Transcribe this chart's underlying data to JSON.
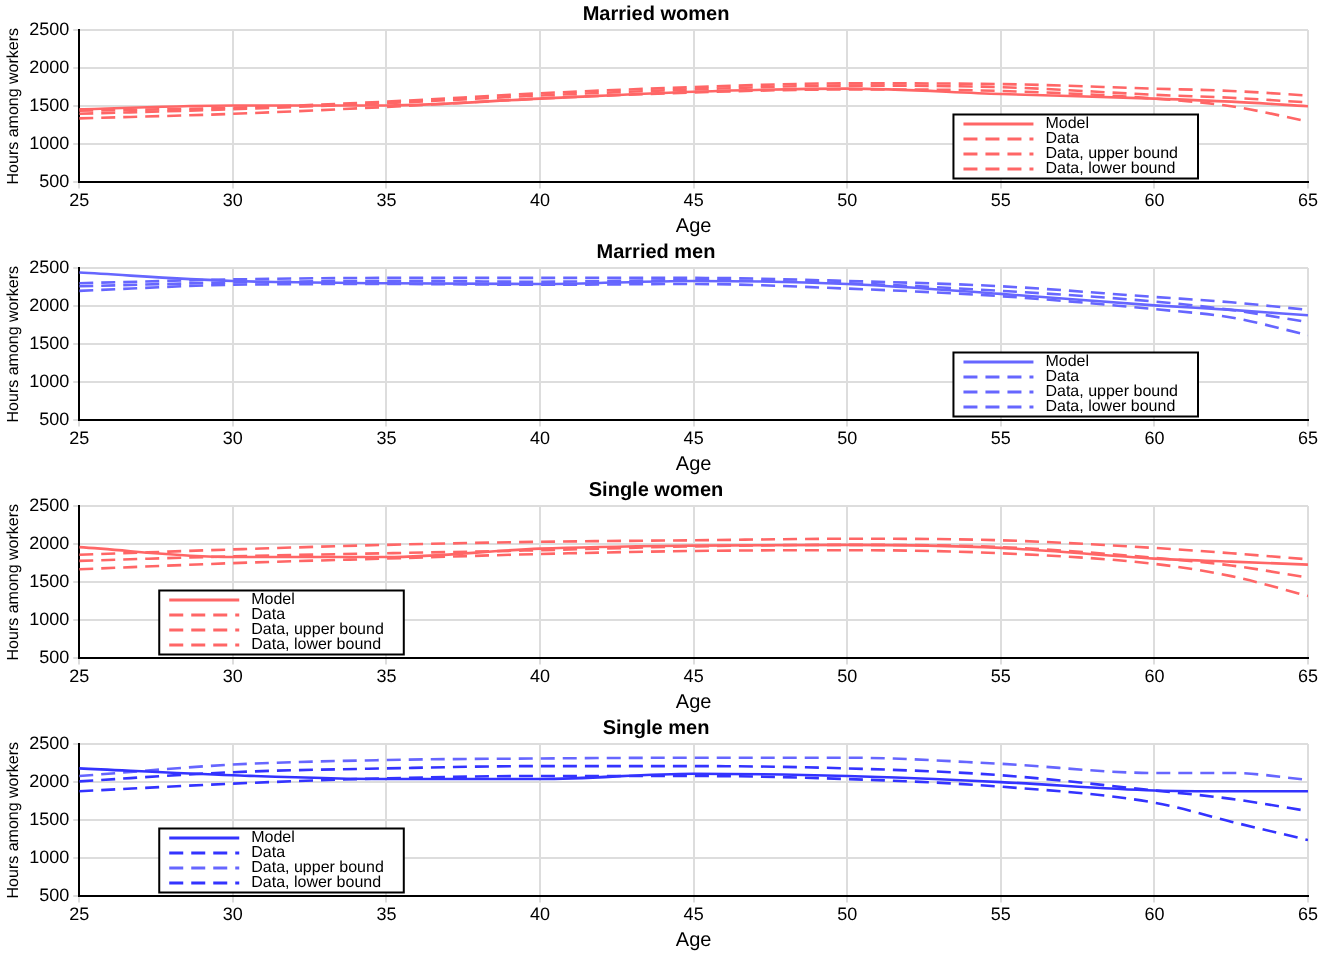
{
  "chart_data": [
    {
      "type": "line",
      "title": "Married women",
      "xlabel": "Age",
      "ylabel": "Hours among workers",
      "x": [
        25,
        30,
        35,
        40,
        45,
        50,
        55,
        60,
        62.5,
        65
      ],
      "xlim": [
        25,
        65
      ],
      "xticks": [
        25,
        30,
        35,
        40,
        45,
        50,
        55,
        60,
        65
      ],
      "ylim": [
        500,
        2500
      ],
      "yticks": [
        500,
        1000,
        1500,
        2000,
        2500
      ],
      "grid": true,
      "legend": "bottom right",
      "series": [
        {
          "name": "Model",
          "color": "#ff6666",
          "line_style": "solid",
          "values": [
            1460,
            1510,
            1510,
            1600,
            1690,
            1730,
            1660,
            1600,
            1560,
            1500
          ]
        },
        {
          "name": "Data",
          "color": "#ff6666",
          "line_style": "dashed",
          "values": [
            1400,
            1460,
            1540,
            1640,
            1720,
            1770,
            1750,
            1650,
            1610,
            1550
          ]
        },
        {
          "name": "Data, upper bound",
          "color": "#ff6666",
          "line_style": "dashed",
          "values": [
            1440,
            1480,
            1560,
            1670,
            1750,
            1800,
            1790,
            1730,
            1700,
            1640
          ]
        },
        {
          "name": "Data, lower bound",
          "color": "#ff6666",
          "line_style": "dashed",
          "values": [
            1340,
            1400,
            1490,
            1600,
            1680,
            1720,
            1700,
            1600,
            1500,
            1300
          ]
        }
      ]
    },
    {
      "type": "line",
      "title": "Married men",
      "xlabel": "Age",
      "ylabel": "Hours among workers",
      "x": [
        25,
        30,
        35,
        40,
        45,
        50,
        55,
        60,
        62.5,
        65
      ],
      "xlim": [
        25,
        65
      ],
      "xticks": [
        25,
        30,
        35,
        40,
        45,
        50,
        55,
        60,
        65
      ],
      "ylim": [
        500,
        2500
      ],
      "yticks": [
        500,
        1000,
        1500,
        2000,
        2500
      ],
      "grid": true,
      "legend": "bottom right",
      "series": [
        {
          "name": "Model",
          "color": "#6666ff",
          "line_style": "solid",
          "values": [
            2440,
            2330,
            2300,
            2290,
            2330,
            2290,
            2160,
            2010,
            1950,
            1880
          ]
        },
        {
          "name": "Data",
          "color": "#6666ff",
          "line_style": "dashed",
          "values": [
            2260,
            2310,
            2330,
            2320,
            2340,
            2300,
            2200,
            2060,
            1950,
            1790
          ]
        },
        {
          "name": "Data, upper bound",
          "color": "#6666ff",
          "line_style": "dashed",
          "values": [
            2300,
            2350,
            2370,
            2370,
            2370,
            2330,
            2260,
            2120,
            2050,
            1950
          ]
        },
        {
          "name": "Data, lower bound",
          "color": "#6666ff",
          "line_style": "dashed",
          "values": [
            2200,
            2280,
            2290,
            2280,
            2290,
            2230,
            2130,
            1960,
            1850,
            1620
          ]
        }
      ]
    },
    {
      "type": "line",
      "title": "Single women",
      "xlabel": "Age",
      "ylabel": "Hours among workers",
      "x": [
        25,
        30,
        35,
        40,
        45,
        50,
        55,
        60,
        62.5,
        65
      ],
      "xlim": [
        25,
        65
      ],
      "xticks": [
        25,
        30,
        35,
        40,
        45,
        50,
        55,
        60,
        65
      ],
      "ylim": [
        500,
        2500
      ],
      "yticks": [
        500,
        1000,
        1500,
        2000,
        2500
      ],
      "grid": true,
      "legend": "bottom left",
      "series": [
        {
          "name": "Model",
          "color": "#ff6666",
          "line_style": "solid",
          "values": [
            1960,
            1830,
            1830,
            1940,
            1980,
            1990,
            1950,
            1810,
            1770,
            1730
          ]
        },
        {
          "name": "Data",
          "color": "#ff6666",
          "line_style": "dashed",
          "values": [
            1780,
            1840,
            1880,
            1920,
            1970,
            1990,
            1960,
            1820,
            1720,
            1560
          ]
        },
        {
          "name": "Data, upper bound",
          "color": "#ff6666",
          "line_style": "dashed",
          "values": [
            1860,
            1930,
            1990,
            2030,
            2050,
            2070,
            2050,
            1950,
            1880,
            1800
          ]
        },
        {
          "name": "Data, lower bound",
          "color": "#ff6666",
          "line_style": "dashed",
          "values": [
            1670,
            1750,
            1810,
            1870,
            1910,
            1920,
            1880,
            1740,
            1580,
            1320
          ]
        }
      ]
    },
    {
      "type": "line",
      "title": "Single men",
      "xlabel": "Age",
      "ylabel": "Hours among workers",
      "x": [
        25,
        30,
        35,
        40,
        45,
        50,
        55,
        60,
        62.5,
        65
      ],
      "xlim": [
        25,
        65
      ],
      "xticks": [
        25,
        30,
        35,
        40,
        45,
        50,
        55,
        60,
        65
      ],
      "ylim": [
        500,
        2500
      ],
      "yticks": [
        500,
        1000,
        1500,
        2000,
        2500
      ],
      "grid": true,
      "legend": "bottom left",
      "series": [
        {
          "name": "Model",
          "color": "#3333ff",
          "line_style": "solid",
          "values": [
            2180,
            2090,
            2040,
            2040,
            2110,
            2080,
            2000,
            1890,
            1880,
            1880
          ]
        },
        {
          "name": "Data",
          "color": "#3333ff",
          "line_style": "dashed",
          "values": [
            2010,
            2130,
            2180,
            2210,
            2210,
            2180,
            2090,
            1890,
            1780,
            1620
          ]
        },
        {
          "name": "Data, upper bound",
          "color": "#6666ff",
          "line_style": "dashed",
          "values": [
            2080,
            2230,
            2290,
            2310,
            2320,
            2320,
            2240,
            2120,
            2120,
            2030
          ]
        },
        {
          "name": "Data, lower bound",
          "color": "#3333ff",
          "line_style": "dashed",
          "values": [
            1880,
            1980,
            2050,
            2080,
            2080,
            2040,
            1940,
            1730,
            1480,
            1240
          ]
        }
      ]
    }
  ]
}
